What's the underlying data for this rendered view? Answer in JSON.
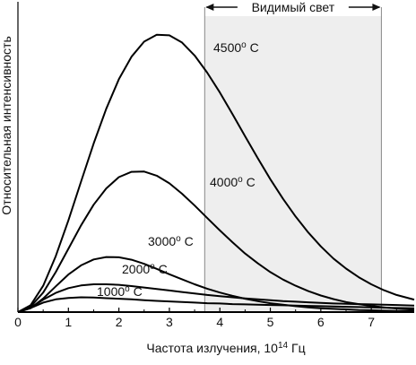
{
  "chart_data": {
    "type": "line",
    "xlabel": "Частота излучения, 10",
    "xlabel_sup": "14",
    "xlabel_unit": " Гц",
    "ylabel": "Относительная интенсивность",
    "xlim": [
      0,
      7.85
    ],
    "ylim": [
      0,
      1.0
    ],
    "x_ticks": [
      0,
      1,
      2,
      3,
      4,
      5,
      6,
      7
    ],
    "grid": false,
    "legend": "none",
    "visible_band": {
      "label": "Видимый свет",
      "x_range": [
        3.7,
        7.2
      ],
      "color": "#eeeeee"
    },
    "series": [
      {
        "label_num": "4500",
        "label_unit": "o",
        "label_suffix": " C",
        "x": [
          0,
          0.25,
          0.5,
          0.75,
          1.0,
          1.25,
          1.5,
          1.75,
          2.0,
          2.25,
          2.5,
          2.75,
          3.0,
          3.25,
          3.5,
          3.75,
          4.0,
          4.25,
          4.5,
          4.75,
          5.0,
          5.25,
          5.5,
          5.75,
          6.0,
          6.25,
          6.5,
          6.75,
          7.0,
          7.25,
          7.5,
          7.85
        ],
        "y": [
          0,
          0.023,
          0.089,
          0.189,
          0.31,
          0.441,
          0.57,
          0.687,
          0.787,
          0.863,
          0.914,
          0.937,
          0.935,
          0.911,
          0.867,
          0.809,
          0.742,
          0.669,
          0.594,
          0.52,
          0.449,
          0.383,
          0.323,
          0.269,
          0.222,
          0.181,
          0.147,
          0.118,
          0.094,
          0.074,
          0.058,
          0.042
        ]
      },
      {
        "label_num": "4000",
        "label_unit": "o",
        "label_suffix": " C",
        "x": [
          0,
          0.25,
          0.5,
          0.75,
          1.0,
          1.25,
          1.5,
          1.75,
          2.0,
          2.25,
          2.5,
          2.75,
          3.0,
          3.25,
          3.5,
          3.75,
          4.0,
          4.25,
          4.5,
          4.75,
          5.0,
          5.25,
          5.5,
          5.75,
          6.0,
          6.25,
          6.5,
          6.75,
          7.0,
          7.25,
          7.5,
          7.85
        ],
        "y": [
          0,
          0.018,
          0.066,
          0.135,
          0.214,
          0.293,
          0.363,
          0.418,
          0.456,
          0.474,
          0.475,
          0.461,
          0.435,
          0.4,
          0.36,
          0.318,
          0.276,
          0.236,
          0.198,
          0.165,
          0.135,
          0.11,
          0.089,
          0.071,
          0.056,
          0.044,
          0.034,
          0.027,
          0.021,
          0.016,
          0.012,
          0.008
        ]
      },
      {
        "label_num": "3000",
        "label_unit": "o",
        "label_suffix": " C",
        "x": [
          0,
          0.25,
          0.5,
          0.75,
          1.0,
          1.25,
          1.5,
          1.75,
          2.0,
          2.25,
          2.5,
          2.75,
          3.0,
          3.25,
          3.5,
          3.75,
          4.0,
          4.25,
          4.5,
          4.75,
          5.0,
          5.25,
          5.5,
          5.75,
          6.0,
          6.25,
          6.5,
          6.75,
          7.0,
          7.25,
          7.5,
          7.85
        ],
        "y": [
          0,
          0.013,
          0.046,
          0.087,
          0.127,
          0.158,
          0.178,
          0.186,
          0.185,
          0.177,
          0.163,
          0.146,
          0.128,
          0.111,
          0.094,
          0.079,
          0.066,
          0.055,
          0.045,
          0.037,
          0.03,
          0.025,
          0.02,
          0.016,
          0.013,
          0.011,
          0.009,
          0.007,
          0.006,
          0.005,
          0.004,
          0.003
        ]
      },
      {
        "label_num": "2000",
        "label_unit": "o",
        "label_suffix": " C",
        "x": [
          0,
          0.25,
          0.5,
          0.75,
          1.0,
          1.25,
          1.5,
          1.75,
          2.0,
          2.25,
          2.5,
          2.75,
          3.0,
          3.25,
          3.5,
          3.75,
          4.0,
          4.25,
          4.5,
          4.75,
          5.0,
          5.25,
          5.5,
          5.75,
          6.0,
          6.25,
          6.5,
          6.75,
          7.0,
          7.25,
          7.5,
          7.85
        ],
        "y": [
          0,
          0.015,
          0.042,
          0.065,
          0.081,
          0.09,
          0.094,
          0.094,
          0.092,
          0.088,
          0.083,
          0.078,
          0.073,
          0.068,
          0.063,
          0.058,
          0.054,
          0.05,
          0.046,
          0.043,
          0.04,
          0.037,
          0.035,
          0.033,
          0.031,
          0.029,
          0.028,
          0.027,
          0.026,
          0.025,
          0.024,
          0.022
        ]
      },
      {
        "label_num": "1000",
        "label_unit": "o",
        "label_suffix": " C",
        "x": [
          0,
          0.25,
          0.5,
          0.75,
          1.0,
          1.25,
          1.5,
          1.75,
          2.0,
          2.25,
          2.5,
          2.75,
          3.0,
          3.25,
          3.5,
          3.75,
          4.0,
          4.25,
          4.5,
          4.75,
          5.0,
          5.25,
          5.5,
          5.75,
          6.0,
          6.25,
          6.5,
          6.75,
          7.0,
          7.25,
          7.5,
          7.85
        ],
        "y": [
          0,
          0.014,
          0.032,
          0.043,
          0.048,
          0.05,
          0.049,
          0.047,
          0.045,
          0.043,
          0.04,
          0.038,
          0.036,
          0.034,
          0.032,
          0.03,
          0.029,
          0.027,
          0.026,
          0.025,
          0.024,
          0.023,
          0.022,
          0.021,
          0.02,
          0.019,
          0.018,
          0.017,
          0.016,
          0.015,
          0.014,
          0.013
        ]
      }
    ]
  }
}
